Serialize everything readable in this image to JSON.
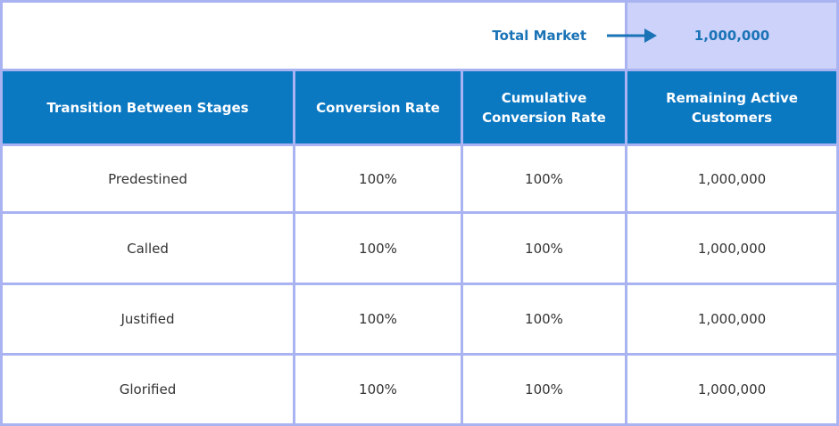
{
  "market": {
    "label": "Total Market",
    "value": "1,000,000"
  },
  "table": {
    "headers": [
      "Transition Between Stages",
      "Conversion Rate",
      "Cumulative\nConversion Rate",
      "Remaining Active\nCustomers"
    ],
    "rows": [
      [
        "Predestined",
        "100%",
        "100%",
        "1,000,000"
      ],
      [
        "Called",
        "100%",
        "100%",
        "1,000,000"
      ],
      [
        "Justified",
        "100%",
        "100%",
        "1,000,000"
      ],
      [
        "Glorified",
        "100%",
        "100%",
        "1,000,000"
      ]
    ]
  },
  "colors": {
    "header_bg": "#0b78c2",
    "accent_text": "#1a73b6",
    "highlight_bg": "#ccd2fa",
    "grid_line": "#a9b3f2"
  },
  "icons": {
    "market_arrow": "arrow-right-icon"
  }
}
